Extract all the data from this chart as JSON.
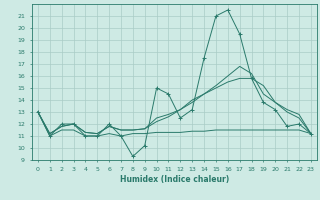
{
  "xlabel": "Humidex (Indice chaleur)",
  "xlim": [
    -0.5,
    23.5
  ],
  "ylim": [
    9,
    22
  ],
  "yticks": [
    9,
    10,
    11,
    12,
    13,
    14,
    15,
    16,
    17,
    18,
    19,
    20,
    21
  ],
  "xticks": [
    0,
    1,
    2,
    3,
    4,
    5,
    6,
    7,
    8,
    9,
    10,
    11,
    12,
    13,
    14,
    15,
    16,
    17,
    18,
    19,
    20,
    21,
    22,
    23
  ],
  "line_color": "#2a7a6b",
  "bg_color": "#ceeae4",
  "grid_color": "#aaccc6",
  "lines": [
    {
      "x": [
        0,
        1,
        2,
        3,
        4,
        5,
        6,
        7,
        8,
        9,
        10,
        11,
        12,
        13,
        14,
        15,
        16,
        17,
        18,
        19,
        20,
        21,
        22,
        23
      ],
      "y": [
        13,
        11,
        12,
        12,
        11,
        11,
        12,
        11,
        9.3,
        10.2,
        15,
        14.5,
        12.5,
        13.2,
        17.5,
        21,
        21.5,
        19.5,
        15.8,
        13.8,
        13.2,
        11.8,
        12,
        11.2
      ],
      "marker": "+"
    },
    {
      "x": [
        0,
        1,
        2,
        3,
        4,
        5,
        6,
        7,
        8,
        9,
        10,
        11,
        12,
        13,
        14,
        15,
        16,
        17,
        18,
        19,
        20,
        21,
        22,
        23
      ],
      "y": [
        13,
        11.2,
        11.8,
        12,
        11.3,
        11.2,
        11.8,
        11.5,
        11.5,
        11.6,
        12.2,
        12.6,
        13.2,
        14.0,
        14.5,
        15.0,
        15.5,
        15.8,
        15.8,
        15.2,
        13.8,
        13.2,
        12.8,
        11.2
      ],
      "marker": null
    },
    {
      "x": [
        0,
        1,
        2,
        3,
        4,
        5,
        6,
        7,
        8,
        9,
        10,
        11,
        12,
        13,
        14,
        15,
        16,
        17,
        18,
        19,
        20,
        21,
        22,
        23
      ],
      "y": [
        13,
        11,
        11.5,
        11.5,
        11,
        11,
        11.2,
        11,
        11.2,
        11.2,
        11.3,
        11.3,
        11.3,
        11.4,
        11.4,
        11.5,
        11.5,
        11.5,
        11.5,
        11.5,
        11.5,
        11.5,
        11.5,
        11.2
      ],
      "marker": null
    },
    {
      "x": [
        0,
        1,
        2,
        3,
        4,
        5,
        6,
        7,
        8,
        9,
        10,
        11,
        12,
        13,
        14,
        15,
        16,
        17,
        18,
        19,
        20,
        21,
        22,
        23
      ],
      "y": [
        13,
        11.2,
        11.8,
        12,
        11.3,
        11.2,
        11.8,
        11.5,
        11.5,
        11.6,
        12.5,
        12.8,
        13.2,
        13.8,
        14.5,
        15.2,
        16.0,
        16.8,
        16.2,
        14.5,
        13.8,
        13.0,
        12.5,
        11.2
      ],
      "marker": null
    }
  ]
}
